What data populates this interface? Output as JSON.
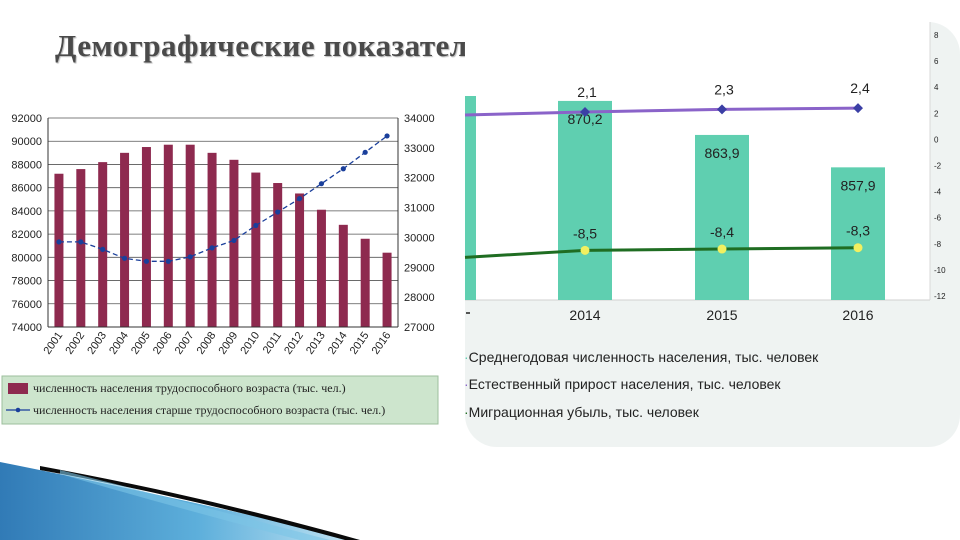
{
  "page": {
    "title": "Демографические показатели"
  },
  "colors": {
    "working_age_bars": "#8e2a4f",
    "elderly_line": "#1a3f9b",
    "population_bars": "#5fcfb0",
    "natural_growth_line": "#8a63c9",
    "migration_line": "#1f6d22",
    "migration_marker": "#f2f060",
    "legend_bg": "#cde5cd"
  },
  "chart_data": [
    {
      "type": "bar",
      "title": "",
      "categories": [
        "2001",
        "2002",
        "2003",
        "2004",
        "2005",
        "2006",
        "2007",
        "2008",
        "2009",
        "2010",
        "2011",
        "2012",
        "2013",
        "2014",
        "2015",
        "2016"
      ],
      "series": [
        {
          "name": "численность населения трудоспособного возраста (тыс. чел.)",
          "axis": "left",
          "type": "bar",
          "values": [
            87200,
            87600,
            88200,
            89000,
            89500,
            89700,
            89700,
            89000,
            88400,
            87300,
            86400,
            85500,
            84100,
            82800,
            81600,
            80400
          ]
        },
        {
          "name": "численность населения старше трудоспособного возраста (тыс. чел.)",
          "axis": "right",
          "type": "line",
          "values": [
            29850,
            29850,
            29600,
            29300,
            29200,
            29200,
            29350,
            29650,
            29900,
            30400,
            30850,
            31300,
            31800,
            32300,
            32850,
            33400
          ]
        }
      ],
      "left_axis": {
        "ylim": [
          74000,
          92000
        ],
        "ticks": [
          "74000",
          "76000",
          "78000",
          "80000",
          "82000",
          "84000",
          "86000",
          "88000",
          "90000",
          "92000"
        ]
      },
      "right_axis": {
        "ylim": [
          27000,
          34000
        ],
        "ticks": [
          "27000",
          "28000",
          "29000",
          "30000",
          "31000",
          "32000",
          "33000",
          "34000"
        ]
      },
      "grid": true,
      "legend_position": "bottom"
    },
    {
      "type": "bar",
      "title": "",
      "categories": [
        "2014",
        "2015",
        "2016"
      ],
      "series": [
        {
          "name": "Среднегодовая численность населения, тыс. человек",
          "type": "bar",
          "values": [
            870.2,
            863.9,
            857.9
          ],
          "labels": [
            "870,2",
            "863,9",
            "857,9"
          ]
        },
        {
          "name": "Естественный прирост населения, тыс. человек",
          "type": "line",
          "axis": "right",
          "values": [
            2.1,
            2.3,
            2.4
          ],
          "labels": [
            "2,1",
            "2,3",
            "2,4"
          ]
        },
        {
          "name": "Миграционная убыль, тыс. человек",
          "type": "line",
          "axis": "right",
          "values": [
            -8.5,
            -8.4,
            -8.3
          ],
          "labels": [
            "-8,5",
            "-8,4",
            "-8,3"
          ]
        }
      ],
      "right_axis": {
        "ylim": [
          -12,
          8
        ],
        "ticks": [
          "8",
          "6",
          "4",
          "2",
          "0",
          "-2",
          "-4",
          "-6",
          "-8",
          "-10",
          "-12"
        ]
      },
      "grid": false,
      "legend_position": "bottom"
    }
  ]
}
